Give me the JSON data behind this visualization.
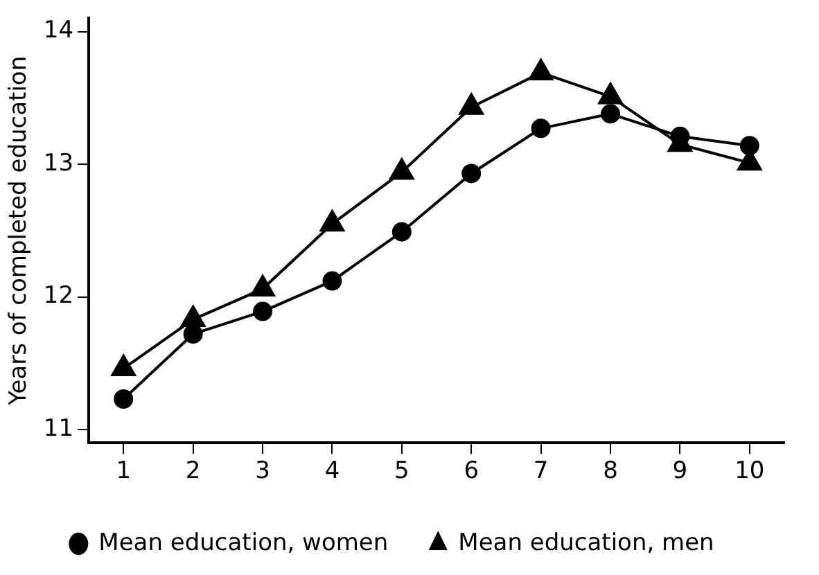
{
  "chart_data": {
    "type": "line",
    "ylabel": "Years of completed education",
    "categories": [
      "1",
      "2",
      "3",
      "4",
      "5",
      "6",
      "7",
      "8",
      "9",
      "10"
    ],
    "series": [
      {
        "name": "Mean education, women",
        "color": "#000000",
        "marker": "circle",
        "values": [
          11.23,
          11.72,
          11.89,
          12.12,
          12.49,
          12.93,
          13.27,
          13.38,
          13.21,
          13.14
        ]
      },
      {
        "name": "Mean education, men",
        "color": "#000000",
        "marker": "triangle",
        "values": [
          11.46,
          11.83,
          12.06,
          12.55,
          12.94,
          13.43,
          13.69,
          13.51,
          13.15,
          13.01
        ]
      }
    ],
    "ylim": [
      10.9,
      14.1
    ],
    "yticks": [
      11,
      12,
      13,
      14
    ],
    "grid": false,
    "legend": "bottom",
    "line_style": "solid"
  }
}
